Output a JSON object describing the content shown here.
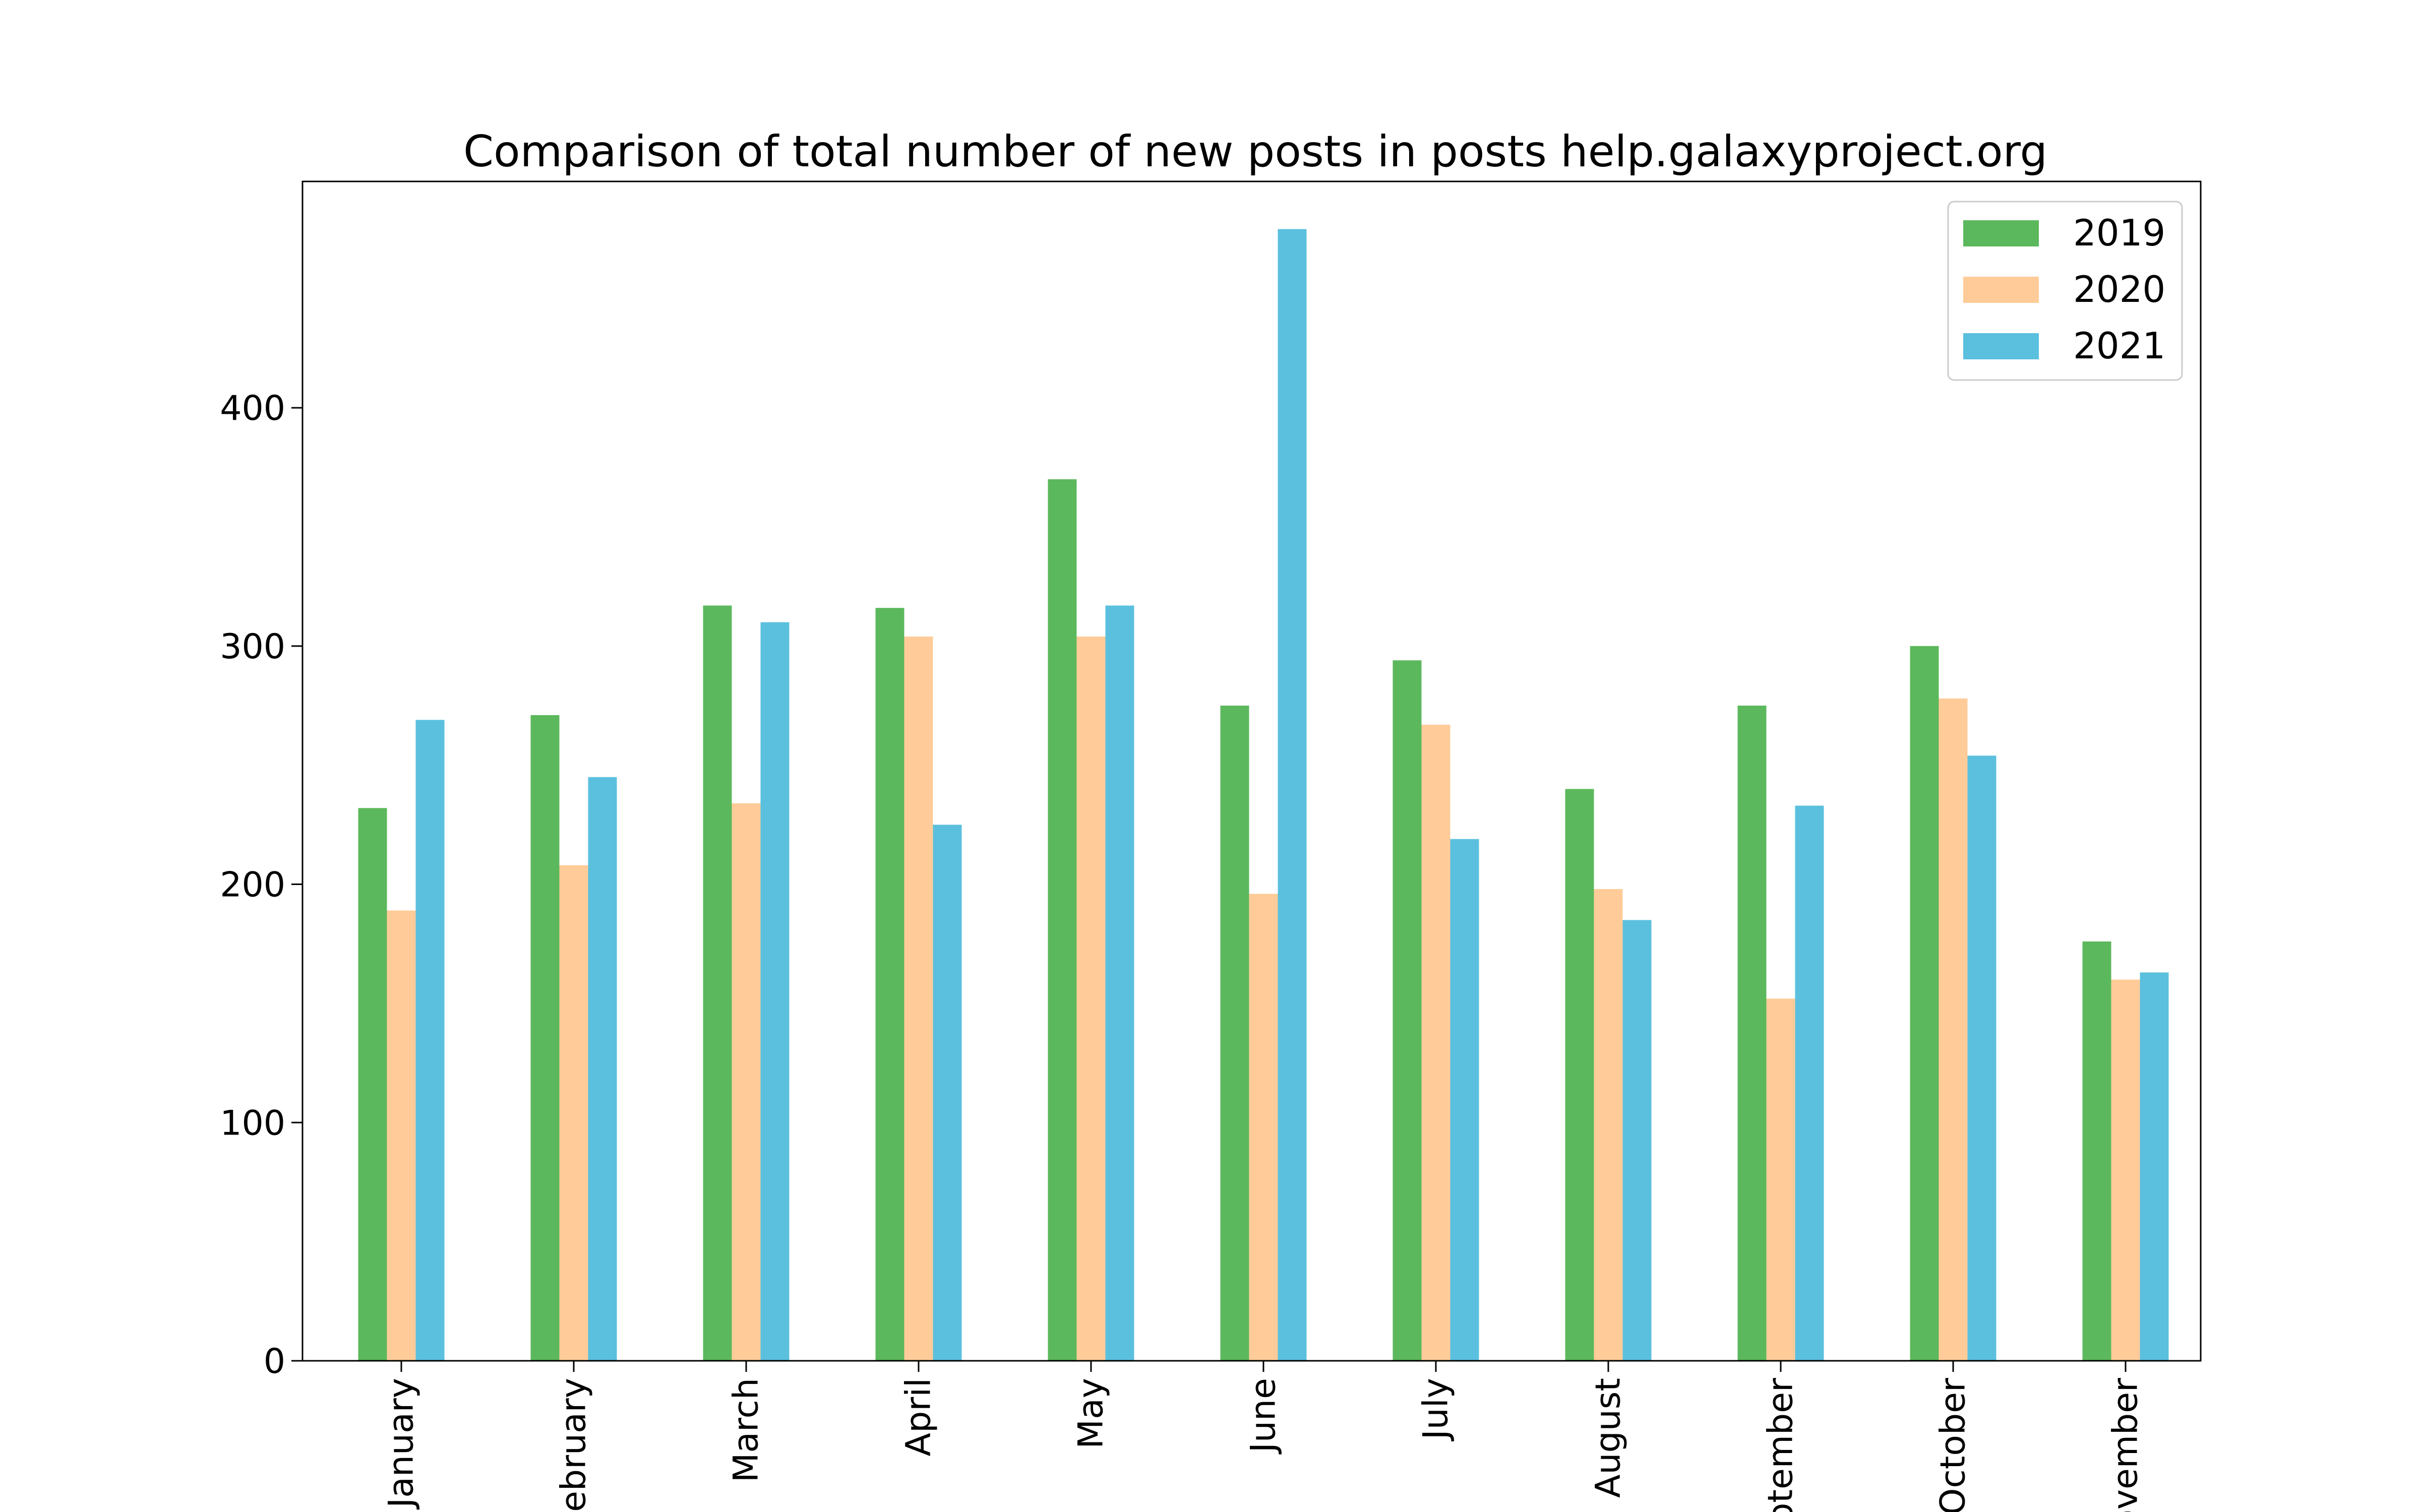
{
  "chart_data": {
    "type": "bar",
    "title": "Comparison of total number of new posts in posts help.galaxyproject.org",
    "xlabel": "",
    "ylabel": "",
    "categories": [
      "January",
      "February",
      "March",
      "April",
      "May",
      "June",
      "July",
      "August",
      "September",
      "October",
      "November"
    ],
    "series": [
      {
        "name": "2019",
        "color": "#5cb85c",
        "values": [
          232,
          271,
          317,
          316,
          370,
          275,
          294,
          240,
          275,
          300,
          176
        ]
      },
      {
        "name": "2020",
        "color": "#ffcc99",
        "values": [
          189,
          208,
          234,
          304,
          304,
          196,
          267,
          198,
          152,
          278,
          160
        ]
      },
      {
        "name": "2021",
        "color": "#5bc0de",
        "values": [
          269,
          245,
          310,
          225,
          317,
          475,
          219,
          185,
          233,
          254,
          163
        ]
      }
    ],
    "ylim": [
      0,
      495
    ],
    "yticks": [
      0,
      100,
      200,
      300,
      400
    ],
    "legend_position": "top-right",
    "grid": false
  }
}
